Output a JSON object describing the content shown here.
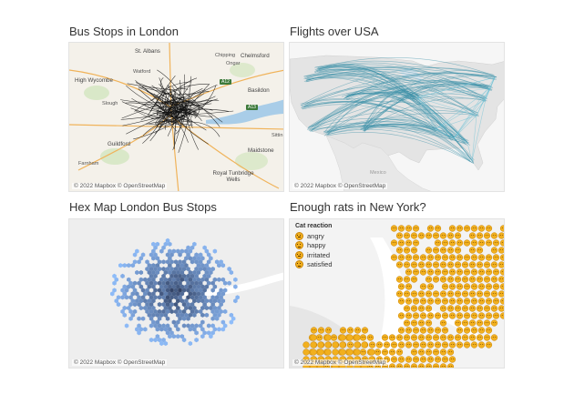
{
  "panels": [
    {
      "title": "Bus Stops in London",
      "attribution": "© 2022 Mapbox © OpenStreetMap",
      "places": [
        "St. Albans",
        "Chipping",
        "Chelmsford",
        "Ongar",
        "High Wycombe",
        "Watford",
        "Basildon",
        "Slough",
        "Guildford",
        "Farnham",
        "Maidstone",
        "Royal Tunbridge Wells",
        "Sittin"
      ],
      "road_signs": [
        "A13",
        "A12"
      ]
    },
    {
      "title": "Flights over USA",
      "attribution": "© 2022 Mapbox © OpenStreetMap",
      "places": [
        "Mexico"
      ]
    },
    {
      "title": "Hex Map London Bus Stops",
      "attribution": "© 2022 Mapbox © OpenStreetMap"
    },
    {
      "title": "Enough rats in New York?",
      "attribution": "© 2022 Mapbox © OpenStreetMap",
      "legend": {
        "title": "Cat reaction",
        "items": [
          "angry",
          "happy",
          "irritated",
          "satisfied"
        ]
      },
      "marker_color": "#f2b01e"
    }
  ],
  "colors": {
    "bus_routes": "#111111",
    "flight_lines": "#3a8fa8",
    "hex_fill": "#7fb3d9",
    "map_land": "#f2f0ec",
    "map_water": "#a9cde8"
  }
}
